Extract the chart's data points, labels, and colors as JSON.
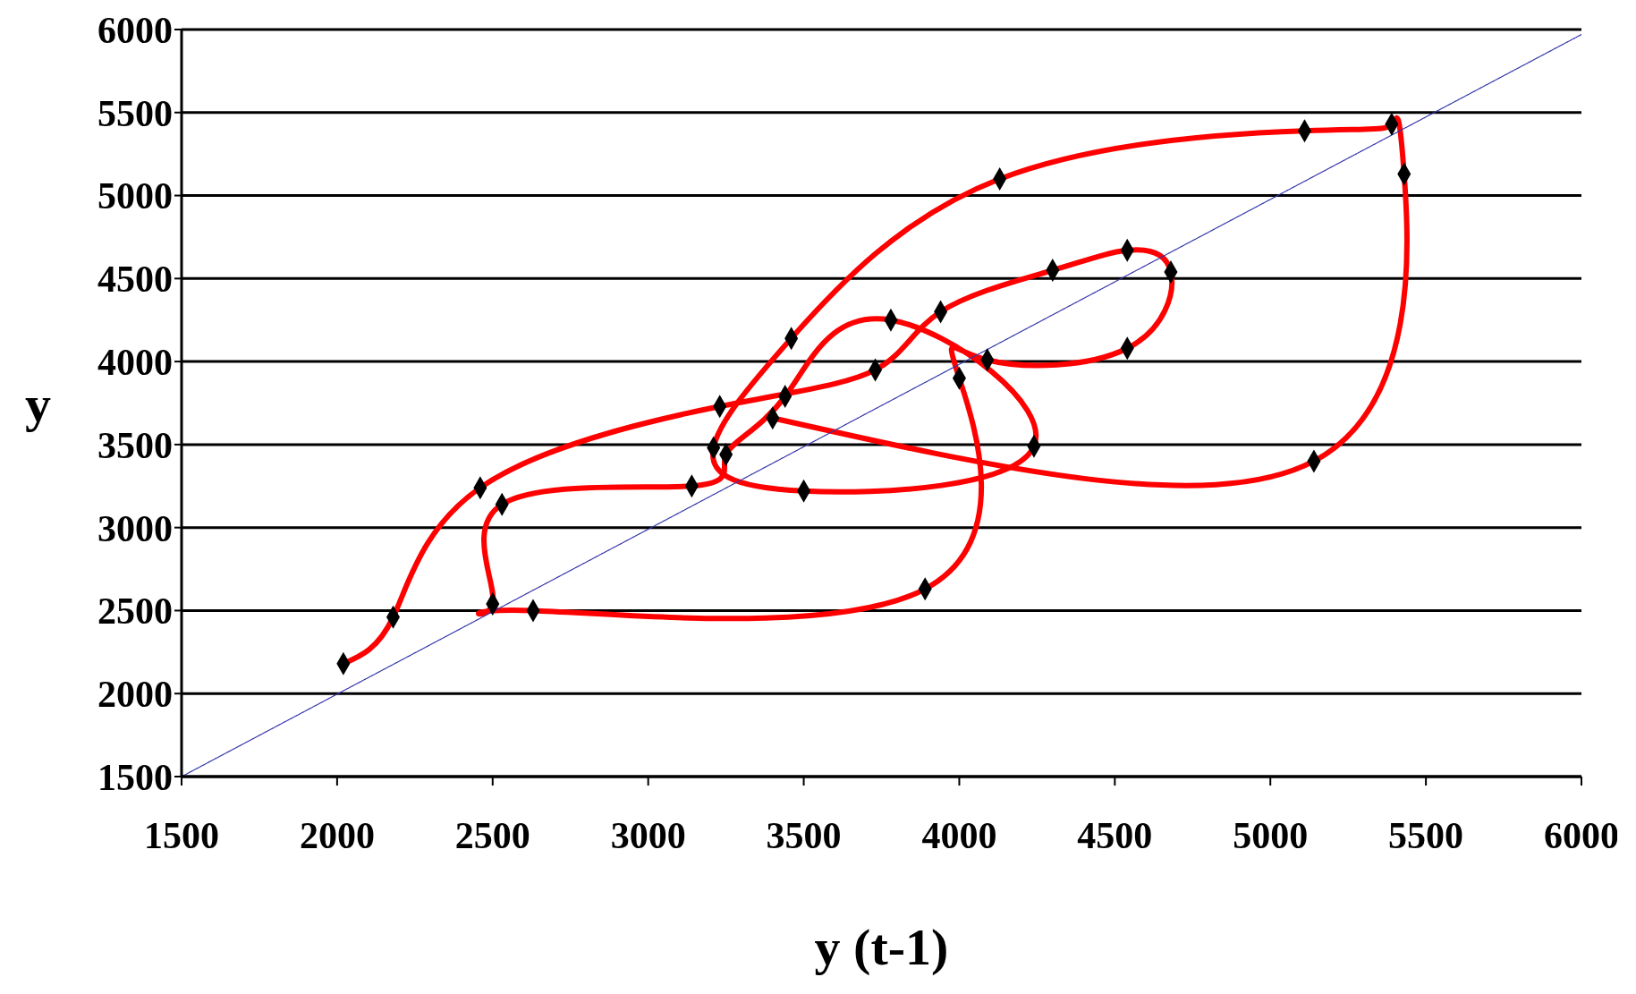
{
  "chart_data": {
    "type": "line",
    "xlabel": "y (t-1)",
    "ylabel": "y",
    "xlim": [
      1500,
      6000
    ],
    "xticks": [
      1500,
      2000,
      2500,
      3000,
      3500,
      4000,
      4500,
      5000,
      5500,
      6000
    ],
    "ylim": [
      1500,
      6000
    ],
    "yticks": [
      1500,
      2000,
      2500,
      3000,
      3500,
      4000,
      4500,
      5000,
      5500,
      6000
    ],
    "grid": "y",
    "series": [
      {
        "color": "#ff0000",
        "marker": "diamond",
        "line_style": "solid",
        "x": [
          2020,
          2180,
          2460,
          3230,
          3730,
          3940,
          4300,
          4540,
          4680,
          4540,
          4090,
          4000,
          3890,
          2630,
          2500,
          2530,
          3140,
          3250,
          3440,
          3780,
          4240,
          3500,
          3210,
          3460,
          4130,
          5110,
          5390,
          5430,
          5140,
          3400
        ],
        "values": [
          2180,
          2460,
          3240,
          3730,
          3950,
          4300,
          4550,
          4670,
          4540,
          4080,
          4010,
          3900,
          2630,
          2500,
          2540,
          3140,
          3250,
          3440,
          3790,
          4250,
          3490,
          3220,
          3480,
          4140,
          5100,
          5390,
          5430,
          5130,
          3400,
          3660
        ]
      },
      {
        "color": "#3333aa",
        "marker": "none",
        "line_style": "dotted",
        "x": [
          1500,
          6000
        ],
        "values": [
          1500,
          5970
        ]
      }
    ]
  }
}
